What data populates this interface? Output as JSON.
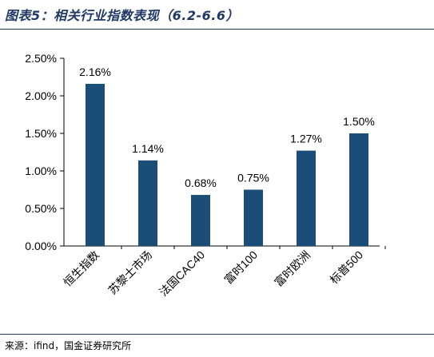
{
  "figure": {
    "title": "图表5：相关行业指数表现（6.2-6.6）",
    "source": "来源：ifind，国金证券研究所"
  },
  "colors": {
    "bar": "#1a4e79",
    "axis": "#000000",
    "title": "#1f3864"
  },
  "chart_data": {
    "type": "bar",
    "categories": [
      "恒生指数",
      "苏黎士市场",
      "法国CAC40",
      "富时100",
      "富时欧洲",
      "标普500"
    ],
    "values": [
      2.16,
      1.14,
      0.68,
      0.75,
      1.27,
      1.5
    ],
    "data_labels": [
      "2.16%",
      "1.14%",
      "0.68%",
      "0.75%",
      "1.27%",
      "1.50%"
    ],
    "y_ticks": [
      0,
      0.5,
      1.0,
      1.5,
      2.0,
      2.5
    ],
    "y_tick_labels": [
      "0.00%",
      "0.50%",
      "1.00%",
      "1.50%",
      "2.00%",
      "2.50%"
    ],
    "ylim": [
      0,
      2.5
    ],
    "grid": false,
    "legend": "none"
  }
}
